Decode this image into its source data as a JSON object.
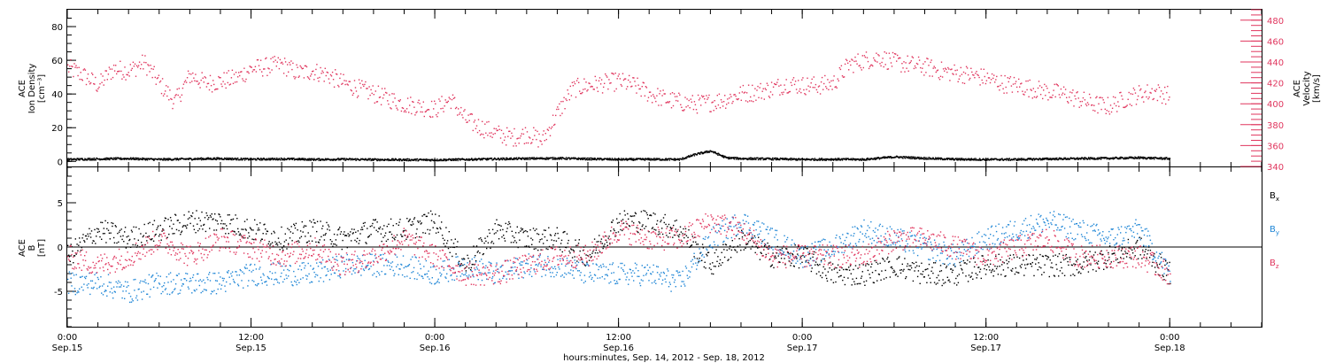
{
  "colors": {
    "black": "#000000",
    "pink": "#e0365e",
    "blue": "#1f86d6"
  },
  "xaxis": {
    "title": "hours:minutes, Sep. 14, 2012 - Sep. 18, 2012",
    "ticks": [
      {
        "t": 0,
        "time": "0:00",
        "date": "Sep.15"
      },
      {
        "t": 12,
        "time": "12:00",
        "date": "Sep.15"
      },
      {
        "t": 24,
        "time": "0:00",
        "date": "Sep.16"
      },
      {
        "t": 36,
        "time": "12:00",
        "date": "Sep.16"
      },
      {
        "t": 48,
        "time": "0:00",
        "date": "Sep.17"
      },
      {
        "t": 60,
        "time": "12:00",
        "date": "Sep.17"
      },
      {
        "t": 72,
        "time": "0:00",
        "date": "Sep.18"
      }
    ]
  },
  "top_panel": {
    "left_label_lines": [
      "ACE",
      "Ion Density",
      "[cm⁻³]"
    ],
    "right_label_lines": [
      "ACE",
      "Velocity",
      "[km/s]"
    ]
  },
  "bottom_panel": {
    "left_label_lines": [
      "ACE",
      "B",
      "[nT]"
    ],
    "legend": [
      {
        "label": "B",
        "sub": "x",
        "color": "#000000"
      },
      {
        "label": "B",
        "sub": "y",
        "color": "#1f86d6"
      },
      {
        "label": "B",
        "sub": "z",
        "color": "#e0365e"
      }
    ]
  },
  "chart_data": [
    {
      "type": "scatter",
      "panel": "top",
      "x_unit": "hours since Sep.15 0:00",
      "xlim": [
        0,
        78
      ],
      "ylim_left": [
        -3,
        90
      ],
      "left_ticks": [
        0,
        20,
        40,
        60,
        80
      ],
      "ylim_right": [
        340,
        490
      ],
      "right_ticks": [
        340,
        360,
        380,
        400,
        420,
        440,
        460,
        480
      ],
      "series": [
        {
          "name": "Velocity",
          "axis": "right",
          "color": "#e0365e",
          "x": [
            0,
            1,
            2,
            3,
            4,
            5,
            6,
            7,
            8,
            9,
            10,
            11,
            12,
            13,
            14,
            15,
            16,
            17,
            18,
            19,
            20,
            21,
            22,
            23,
            24,
            25,
            26,
            27,
            28,
            29,
            30,
            31,
            32,
            33,
            34,
            35,
            36,
            37,
            38,
            39,
            40,
            41,
            42,
            43,
            44,
            45,
            46,
            47,
            48,
            49,
            50,
            51,
            52,
            53,
            54,
            55,
            56,
            57,
            58,
            59,
            60,
            61,
            62,
            63,
            64,
            65,
            66,
            67,
            68,
            69,
            70,
            71,
            72
          ],
          "y": [
            435,
            428,
            418,
            434,
            432,
            440,
            420,
            402,
            428,
            420,
            422,
            425,
            434,
            436,
            438,
            430,
            432,
            428,
            420,
            415,
            410,
            405,
            400,
            398,
            395,
            405,
            385,
            378,
            372,
            368,
            372,
            365,
            392,
            415,
            418,
            420,
            422,
            418,
            410,
            405,
            402,
            400,
            402,
            405,
            410,
            412,
            415,
            420,
            418,
            418,
            420,
            438,
            442,
            445,
            440,
            438,
            436,
            432,
            430,
            428,
            425,
            420,
            418,
            415,
            412,
            410,
            405,
            400,
            398,
            405,
            410,
            412,
            408
          ]
        },
        {
          "name": "Ion Density",
          "axis": "left",
          "color": "#000000",
          "x": [
            0,
            2,
            4,
            6,
            8,
            10,
            12,
            14,
            16,
            18,
            20,
            22,
            24,
            26,
            28,
            30,
            32,
            34,
            36,
            38,
            40,
            41,
            42,
            43,
            44,
            46,
            48,
            50,
            52,
            54,
            56,
            58,
            60,
            62,
            64,
            66,
            68,
            70,
            72
          ],
          "y": [
            1.5,
            1.8,
            2.0,
            1.5,
            1.8,
            2.0,
            1.6,
            1.8,
            1.5,
            1.6,
            1.4,
            1.3,
            1.2,
            1.5,
            1.8,
            2.0,
            2.2,
            1.8,
            1.5,
            1.6,
            1.5,
            4.5,
            6.5,
            2.5,
            2.0,
            1.8,
            1.5,
            1.6,
            1.5,
            3.0,
            2.2,
            1.6,
            1.5,
            1.5,
            1.8,
            2.0,
            2.2,
            2.5,
            2.0
          ]
        }
      ]
    },
    {
      "type": "scatter",
      "panel": "bottom",
      "x_unit": "hours since Sep.15 0:00",
      "xlim": [
        0,
        78
      ],
      "ylim": [
        -9,
        9
      ],
      "y_ticks": [
        -5,
        0,
        5
      ],
      "series": [
        {
          "name": "Bx",
          "color": "#000000",
          "x": [
            0,
            2,
            4,
            6,
            8,
            10,
            12,
            14,
            16,
            18,
            20,
            22,
            24,
            26,
            28,
            30,
            32,
            34,
            36,
            38,
            40,
            42,
            44,
            46,
            48,
            50,
            52,
            54,
            56,
            58,
            60,
            62,
            64,
            66,
            68,
            70,
            72
          ],
          "y": [
            -1,
            2,
            1,
            2,
            3,
            3,
            2,
            1,
            2,
            1,
            2,
            2,
            3,
            -2,
            2,
            1,
            1,
            -1,
            3,
            3,
            2,
            -2,
            1,
            -1,
            -1,
            -3,
            -3,
            -2,
            -3,
            -3,
            -2,
            -2,
            -2,
            -2,
            -1,
            0,
            -3
          ]
        },
        {
          "name": "By",
          "color": "#1f86d6",
          "x": [
            0,
            2,
            4,
            6,
            8,
            10,
            12,
            14,
            16,
            18,
            20,
            22,
            24,
            26,
            28,
            30,
            32,
            34,
            36,
            38,
            40,
            42,
            44,
            46,
            48,
            50,
            52,
            54,
            56,
            58,
            60,
            62,
            64,
            66,
            68,
            70,
            72
          ],
          "y": [
            -4,
            -4,
            -5,
            -4,
            -4,
            -4,
            -3,
            -3,
            -3,
            -2,
            -2,
            -2,
            -3,
            -2,
            -3,
            -2,
            -2,
            -3,
            -3,
            -3,
            -4,
            1,
            3,
            1,
            -1,
            0,
            2,
            1,
            0,
            -1,
            1,
            2,
            3,
            2,
            1,
            2,
            -3
          ]
        },
        {
          "name": "Bz",
          "color": "#e0365e",
          "x": [
            0,
            2,
            4,
            6,
            8,
            10,
            12,
            14,
            16,
            18,
            20,
            22,
            24,
            26,
            28,
            30,
            32,
            34,
            36,
            38,
            40,
            42,
            44,
            46,
            48,
            50,
            52,
            54,
            56,
            58,
            60,
            62,
            64,
            66,
            68,
            70,
            72
          ],
          "y": [
            -1,
            -2,
            -1,
            1,
            -1,
            1,
            0,
            -1,
            0,
            -2,
            -1,
            1,
            -1,
            -3,
            -3,
            -2,
            -1,
            -1,
            2,
            1,
            1,
            3,
            2,
            -1,
            -1,
            -1,
            -1,
            1,
            1,
            0,
            -1,
            0,
            1,
            -1,
            -1,
            -1,
            -3
          ]
        }
      ]
    }
  ]
}
